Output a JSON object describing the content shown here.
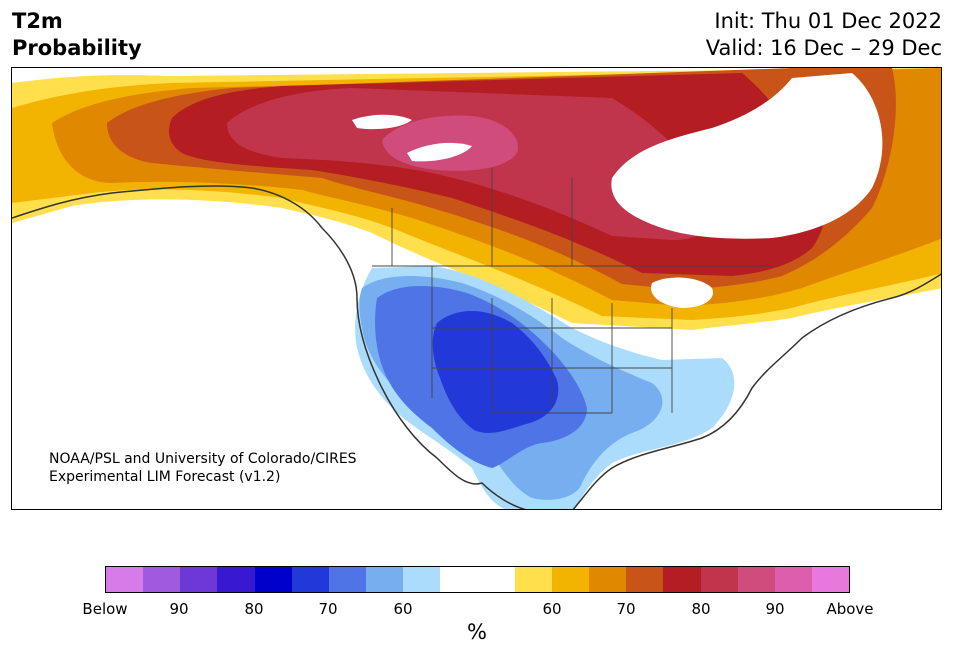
{
  "title": {
    "line1": "T2m",
    "line2": "Probability"
  },
  "dates": {
    "init": "Init: Thu 01 Dec 2022",
    "valid": "Valid: 16 Dec – 29 Dec"
  },
  "credit": {
    "line1": "NOAA/PSL and University of Colorado/CIRES",
    "line2": "Experimental LIM Forecast (v1.2)"
  },
  "colorbar": {
    "colors": [
      "#d67be8",
      "#a05ae0",
      "#6c38d8",
      "#3818d0",
      "#0000cc",
      "#2238d8",
      "#4e74e6",
      "#76aef0",
      "#acdcfc",
      "#ffffff",
      "#ffffff",
      "#ffe04c",
      "#f2b400",
      "#e08800",
      "#c85418",
      "#b41e22",
      "#c0344c",
      "#d04c7c",
      "#dc5eac",
      "#e878dc"
    ],
    "ticks": [
      "Below",
      "90",
      "80",
      "70",
      "60",
      "60",
      "70",
      "80",
      "90",
      "Above"
    ],
    "unit": "%"
  },
  "map_colors": {
    "land": "#ffffff",
    "cold_60": "#acdcfc",
    "cold_70": "#76aef0",
    "cold_75": "#4e74e6",
    "cold_80": "#2238d8",
    "warm_55": "#ffe04c",
    "warm_60": "#f2b400",
    "warm_65": "#e08800",
    "warm_70": "#c85418",
    "warm_75": "#b41e22",
    "warm_80": "#c0344c",
    "warm_85": "#d04c7c"
  }
}
